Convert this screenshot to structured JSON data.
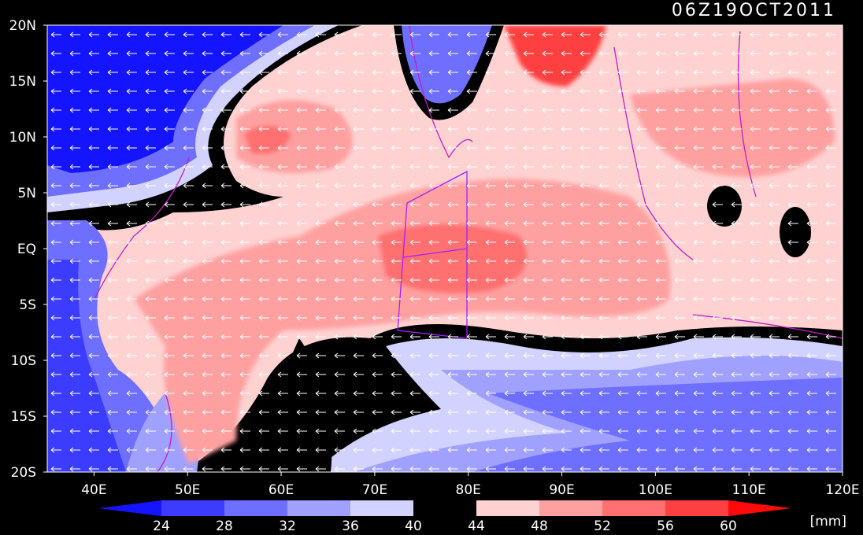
{
  "title": "06Z19OCT2011",
  "map": {
    "lat_labels": [
      "20N",
      "15N",
      "10N",
      "5N",
      "EQ",
      "5S",
      "10S",
      "15S",
      "20S"
    ],
    "lon_labels": [
      "40E",
      "50E",
      "60E",
      "70E",
      "80E",
      "90E",
      "100E",
      "110E",
      "120E"
    ]
  },
  "colorbar": {
    "levels": [
      24,
      28,
      32,
      36,
      40,
      44,
      48,
      52,
      56,
      60
    ],
    "colors": [
      "#1414ff",
      "#3c3cff",
      "#6e6eff",
      "#a0a0ff",
      "#d2d2ff",
      "#000000",
      "#ffd2d2",
      "#ffa0a0",
      "#ff7070",
      "#ff4040",
      "#ff0a0a"
    ],
    "unit": "[mm]"
  }
}
